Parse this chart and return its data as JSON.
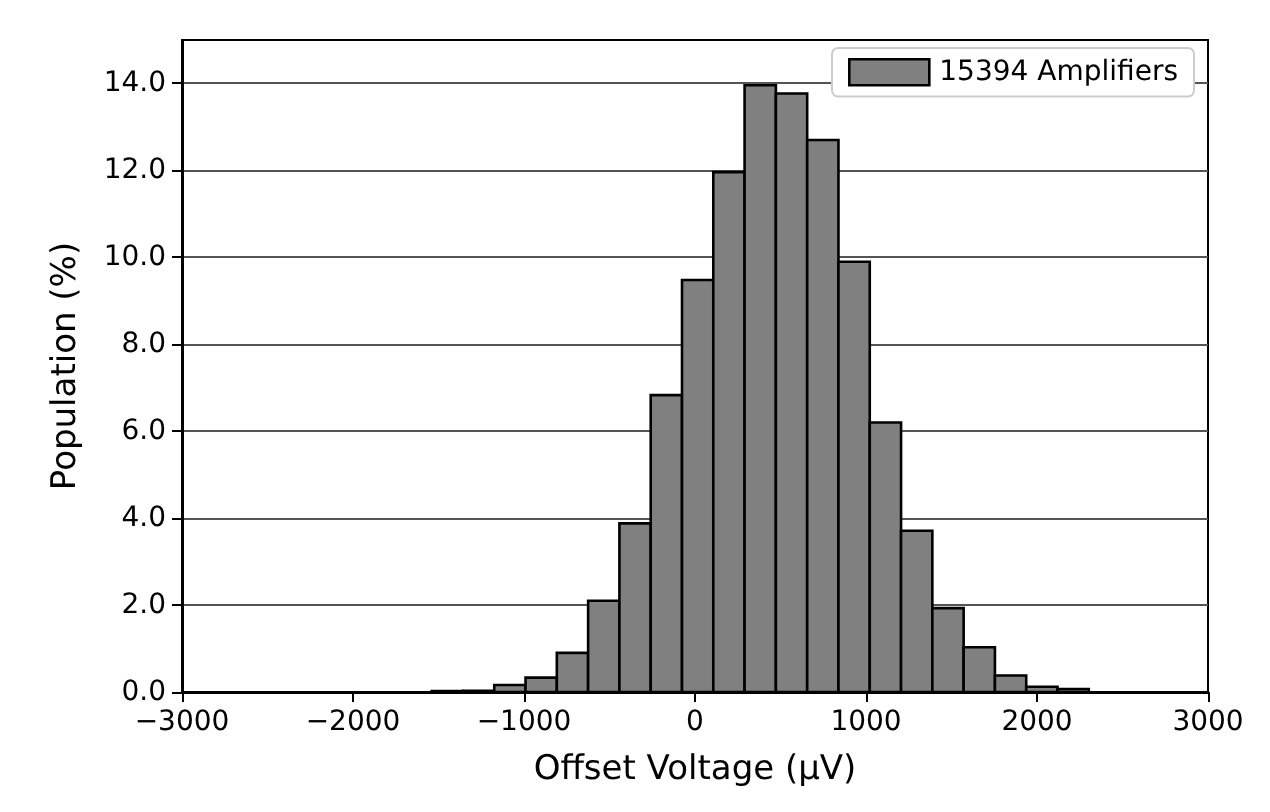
{
  "chart_data": {
    "type": "histogram",
    "xlabel": "Offset Voltage (µV)",
    "ylabel": "Population (%)",
    "bins": [
      -1540,
      -1357,
      -1174,
      -991,
      -808,
      -625,
      -442,
      -259,
      -76,
      107,
      290,
      473,
      656,
      839,
      1022,
      1205,
      1388,
      1571,
      1754,
      1937,
      2120,
      2303
    ],
    "series": [
      {
        "name": "15394 Amplifiers",
        "color": "#808080",
        "values": [
          0.02,
          0.03,
          0.16,
          0.33,
          0.9,
          2.1,
          3.88,
          6.83,
          9.48,
          11.96,
          13.96,
          13.77,
          12.7,
          9.9,
          6.2,
          3.71,
          1.93,
          1.03,
          0.38,
          0.12,
          0.07
        ]
      }
    ],
    "xlim": [
      -3000,
      3000
    ],
    "xticks": [
      {
        "value": -3000,
        "label": "−3000"
      },
      {
        "value": -2000,
        "label": "−2000"
      },
      {
        "value": -1000,
        "label": "−1000"
      },
      0,
      1000,
      2000,
      3000
    ],
    "ylim": [
      0,
      15
    ],
    "yticks": [
      {
        "value": 0,
        "label": "0.0"
      },
      {
        "value": 2,
        "label": "2.0"
      },
      {
        "value": 4,
        "label": "4.0"
      },
      {
        "value": 6,
        "label": "6.0"
      },
      {
        "value": 8,
        "label": "8.0"
      },
      {
        "value": 10,
        "label": "10.0"
      },
      {
        "value": 12,
        "label": "12.0"
      },
      {
        "value": 14,
        "label": "14.0"
      }
    ],
    "grid": "y",
    "legend": "top right"
  }
}
